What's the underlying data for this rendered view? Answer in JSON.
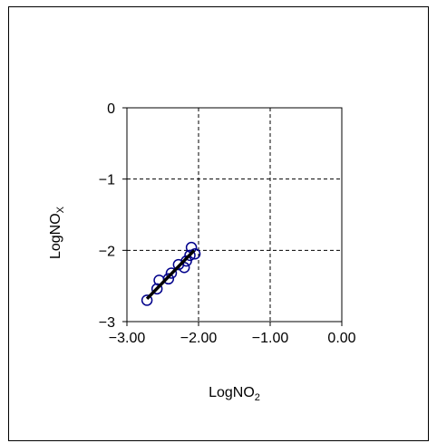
{
  "chart_data": {
    "type": "scatter",
    "xlabel": "LogNO",
    "xlabel_sub": "2",
    "ylabel": "LogNO",
    "ylabel_sub": "X",
    "xlim": [
      -3.0,
      0.0
    ],
    "ylim": [
      -3,
      0
    ],
    "x_ticks": [
      -3.0,
      -2.0,
      -1.0,
      0.0
    ],
    "x_tick_labels": [
      "−3.00",
      "−2.00",
      "−1.00",
      "0.00"
    ],
    "y_ticks": [
      0,
      -1,
      -2,
      -3
    ],
    "y_tick_labels": [
      "0",
      "−1",
      "−2",
      "−3"
    ],
    "grid": true,
    "grid_style": "dashed",
    "series": [
      {
        "type": "scatter",
        "marker": "open-circle",
        "color": "#00008b",
        "x": [
          -2.72,
          -2.58,
          -2.55,
          -2.42,
          -2.38,
          -2.28,
          -2.2,
          -2.17,
          -2.12,
          -2.1,
          -2.05
        ],
        "y": [
          -2.7,
          -2.54,
          -2.42,
          -2.4,
          -2.32,
          -2.2,
          -2.24,
          -2.15,
          -2.07,
          -1.96,
          -2.05
        ]
      },
      {
        "type": "line",
        "color": "#000000",
        "x": [
          -2.72,
          -2.06
        ],
        "y": [
          -2.68,
          -2.0
        ]
      }
    ]
  }
}
